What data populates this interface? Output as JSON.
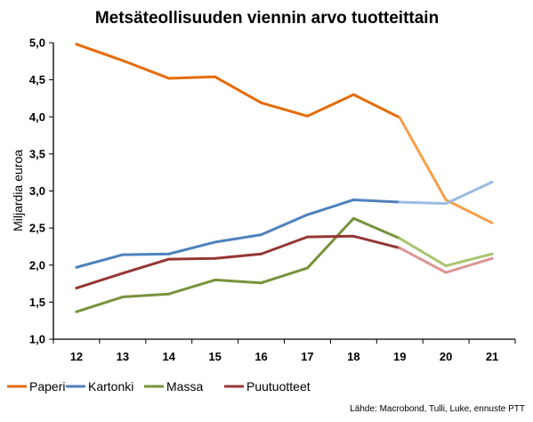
{
  "chart_data": {
    "type": "line",
    "title": "Metsäteollisuuden viennin arvo tuotteittain",
    "ylabel": "Miljardia euroa",
    "xlabel": "",
    "x": [
      "12",
      "13",
      "14",
      "15",
      "16",
      "17",
      "18",
      "19",
      "20",
      "21"
    ],
    "ylim": [
      1.0,
      5.0
    ],
    "yticks": [
      "1,0",
      "1,5",
      "2,0",
      "2,5",
      "3,0",
      "3,5",
      "4,0",
      "4,5",
      "5,0"
    ],
    "forecast_from": "19",
    "grid": false,
    "legend_position": "bottom-left",
    "series": [
      {
        "name": "Paperi",
        "color": "#E46C0A",
        "forecast_color": "#F4A04A",
        "values": [
          4.98,
          4.76,
          4.52,
          4.54,
          4.19,
          4.01,
          4.3,
          3.99,
          2.88,
          2.57
        ]
      },
      {
        "name": "Kartonki",
        "color": "#4F81BD",
        "forecast_color": "#9DBBE3",
        "values": [
          1.97,
          2.14,
          2.15,
          2.31,
          2.41,
          2.68,
          2.88,
          2.85,
          2.83,
          3.12
        ]
      },
      {
        "name": "Massa",
        "color": "#77933C",
        "forecast_color": "#A9C470",
        "values": [
          1.37,
          1.57,
          1.61,
          1.8,
          1.76,
          1.96,
          2.63,
          2.36,
          1.99,
          2.15
        ]
      },
      {
        "name": "Puutuotteet",
        "color": "#953735",
        "forecast_color": "#D99694",
        "values": [
          1.69,
          1.89,
          2.08,
          2.09,
          2.15,
          2.38,
          2.39,
          2.23,
          1.9,
          2.09
        ]
      }
    ],
    "source": "Lähde:  Macrobond, Tulli, Luke, ennuste PTT"
  }
}
